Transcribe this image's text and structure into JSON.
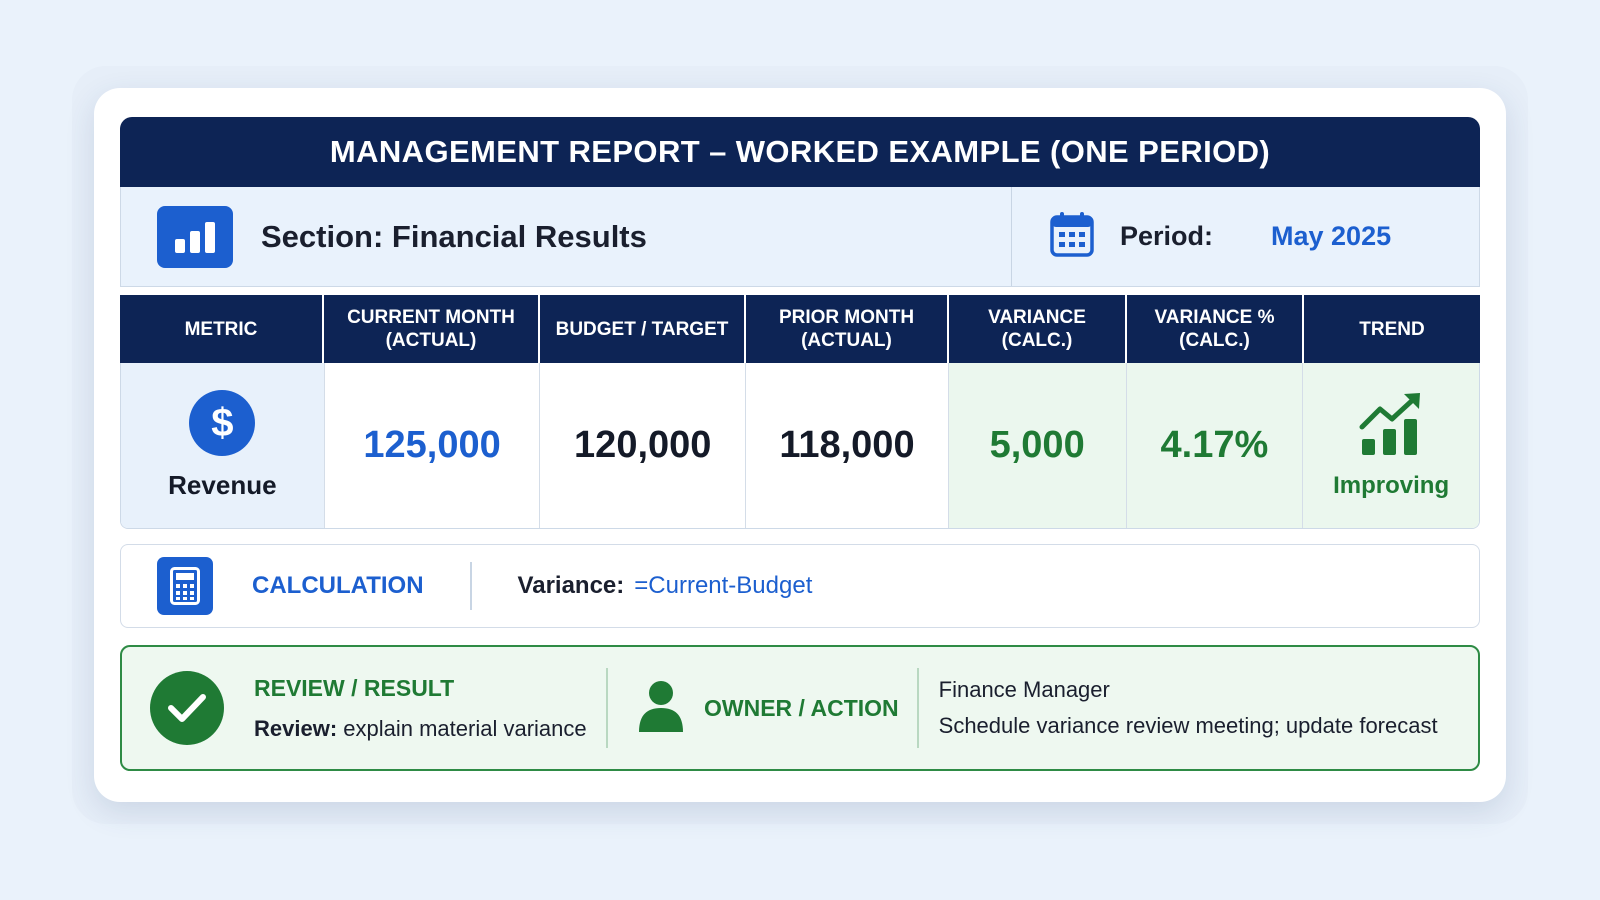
{
  "report": {
    "title": "MANAGEMENT REPORT – WORKED EXAMPLE (ONE PERIOD)",
    "section_label": "Section: Financial Results",
    "section_icon": "bar-chart-icon",
    "period_label": "Period:",
    "period_value": "May 2025",
    "period_icon": "calendar-icon"
  },
  "table": {
    "headers": [
      "METRIC",
      "CURRENT MONTH\n(ACTUAL)",
      "BUDGET / TARGET",
      "PRIOR MONTH\n(ACTUAL)",
      "VARIANCE\n(CALC.)",
      "VARIANCE %\n(CALC.)",
      "TREND"
    ],
    "row": {
      "metric": "Revenue",
      "metric_icon": "dollar-icon",
      "current_month": "125,000",
      "budget": "120,000",
      "prior_month": "118,000",
      "variance": "5,000",
      "variance_pct": "4.17%",
      "trend": "Improving",
      "trend_icon": "trend-up-icon"
    }
  },
  "calculation": {
    "title": "CALCULATION",
    "label": "Variance:",
    "formula": "=Current-Budget",
    "icon": "calculator-icon"
  },
  "review": {
    "title": "REVIEW / RESULT",
    "label": "Review:",
    "text": "explain material variance",
    "icon": "check-icon"
  },
  "owner": {
    "title": "OWNER / ACTION",
    "name": "Finance Manager",
    "action": "Schedule variance review meeting; update forecast",
    "icon": "person-icon"
  },
  "colors": {
    "navy": "#0d2455",
    "accent_blue": "#1c5fcf",
    "positive_green": "#1f7a34",
    "background": "#eaf2fb"
  }
}
